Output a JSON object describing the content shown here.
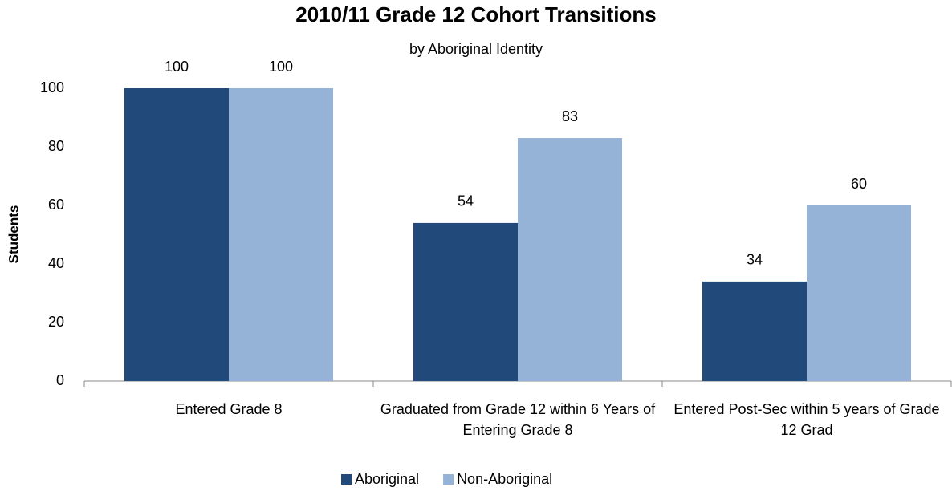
{
  "chart_data": {
    "type": "bar",
    "title": "2010/11 Grade 12 Cohort Transitions",
    "subtitle": "by Aboriginal Identity",
    "y_label": "Students",
    "categories": [
      "Entered Grade 8",
      "Graduated from Grade 12 within 6 Years of Entering Grade 8",
      "Entered Post-Sec within 5 years of Grade 12 Grad"
    ],
    "series": [
      {
        "name": "Aboriginal",
        "color": "#214a7b",
        "values": [
          100,
          54,
          34
        ]
      },
      {
        "name": "Non-Aboriginal",
        "color": "#95b3d7",
        "values": [
          100,
          83,
          60
        ]
      }
    ],
    "ylim": [
      0,
      100
    ],
    "yticks": [
      0,
      20,
      40,
      60,
      80,
      100
    ],
    "grid": false,
    "legend": "bottom"
  }
}
